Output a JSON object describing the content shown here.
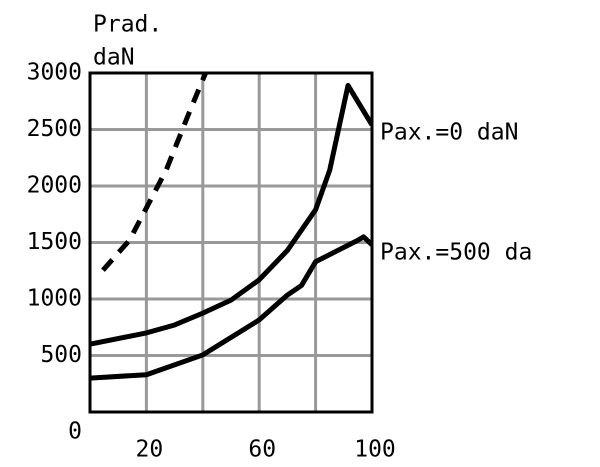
{
  "chart_data": {
    "type": "line",
    "ylabel": [
      "Prad.",
      "daN"
    ],
    "x": [
      0,
      4.6,
      14,
      20,
      27,
      30,
      35.5,
      40,
      41,
      50,
      60,
      70,
      75,
      80,
      85,
      91.5,
      95,
      97,
      100
    ],
    "series": [
      {
        "name": "Pax.=0 daN",
        "color": "#000000",
        "dash": false,
        "values": [
          600,
          null,
          null,
          700,
          null,
          770,
          null,
          875,
          null,
          990,
          1170,
          1430,
          null,
          1790,
          2140,
          2890,
          null,
          null,
          2540
        ]
      },
      {
        "name": "Pax.=500 da",
        "color": "#000000",
        "dash": false,
        "values": [
          300,
          null,
          null,
          330,
          null,
          null,
          null,
          505,
          null,
          null,
          815,
          1035,
          1120,
          1330,
          null,
          null,
          1520,
          1550,
          1480
        ]
      },
      {
        "color": "#000000",
        "dash": true,
        "values": [
          null,
          1255,
          1520,
          null,
          2140,
          null,
          2670,
          null,
          3000,
          null,
          null,
          null,
          null,
          null,
          null,
          null,
          null,
          null,
          null
        ]
      }
    ],
    "xlim": [
      0,
      100
    ],
    "ylim": [
      0,
      3000
    ],
    "xticks": [
      0,
      20,
      {
        "value": 40,
        "label": null
      },
      60,
      {
        "value": 80,
        "label": null
      },
      100
    ],
    "yticks": [
      500,
      1000,
      1500,
      2000,
      2500,
      3000
    ],
    "grid": true
  }
}
